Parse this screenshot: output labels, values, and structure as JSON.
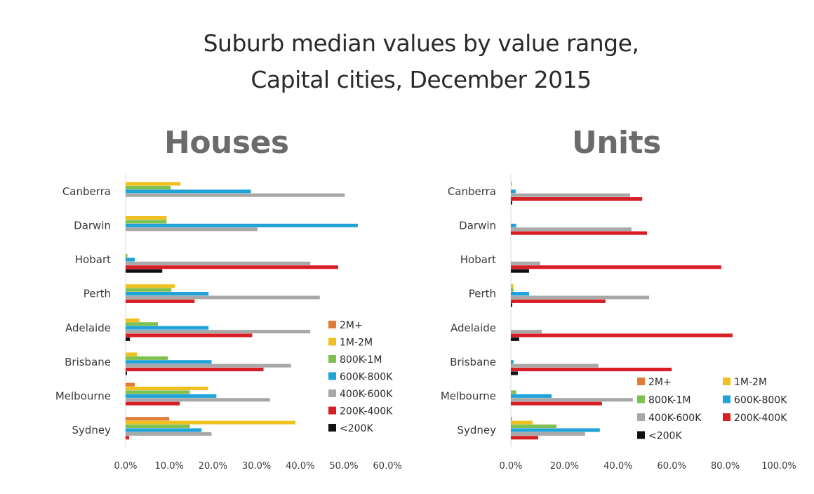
{
  "header": {
    "title_line1": "Suburb median values by value range,",
    "title_line2": "Capital cities, December 2015"
  },
  "series_colors": {
    "2M+": "#E07B39",
    "1M-2M": "#F0C020",
    "800K-1M": "#80C050",
    "600K-800K": "#1FA3D8",
    "400K-600K": "#A8A8A8",
    "200K-400K": "#D81E25",
    "<200K": "#111111"
  },
  "chart_data": [
    {
      "type": "bar",
      "orientation": "horizontal",
      "title": "Houses",
      "xlabel": "",
      "ylabel": "",
      "xlim": [
        0,
        60
      ],
      "x_ticks": [
        "0.0%",
        "10.0%",
        "20.0%",
        "30.0%",
        "40.0%",
        "50.0%",
        "60.0%"
      ],
      "grid": false,
      "legend_position": "right, single column",
      "categories": [
        "Canberra",
        "Darwin",
        "Hobart",
        "Perth",
        "Adelaide",
        "Brisbane",
        "Melbourne",
        "Sydney"
      ],
      "series": [
        {
          "name": "2M+",
          "values": [
            0,
            0,
            0,
            0,
            0,
            0,
            2.1,
            10.0
          ]
        },
        {
          "name": "1M-2M",
          "values": [
            12.6,
            9.4,
            0,
            11.3,
            3.2,
            2.6,
            18.9,
            38.9
          ]
        },
        {
          "name": "800K-1M",
          "values": [
            10.3,
            9.4,
            0.4,
            10.5,
            7.4,
            9.7,
            14.7,
            14.7
          ]
        },
        {
          "name": "600K-800K",
          "values": [
            28.7,
            53.2,
            2.1,
            19.0,
            19.0,
            19.7,
            20.8,
            17.4
          ]
        },
        {
          "name": "400K-600K",
          "values": [
            50.2,
            30.2,
            42.3,
            44.5,
            42.3,
            37.9,
            33.1,
            19.7
          ]
        },
        {
          "name": "200K-400K",
          "values": [
            0,
            0,
            48.7,
            15.8,
            29.0,
            31.6,
            12.4,
            0.8
          ]
        },
        {
          "name": "<200K",
          "values": [
            0,
            0,
            8.4,
            0,
            1.0,
            0.3,
            0,
            0
          ]
        }
      ]
    },
    {
      "type": "bar",
      "orientation": "horizontal",
      "title": "Units",
      "xlabel": "",
      "ylabel": "",
      "xlim": [
        0,
        100
      ],
      "x_ticks": [
        "0.0%",
        "20.0%",
        "40.0%",
        "60.0%",
        "80.0%",
        "100.0%"
      ],
      "grid": false,
      "legend_position": "lower right, two columns",
      "categories": [
        "Canberra",
        "Darwin",
        "Hobart",
        "Perth",
        "Adelaide",
        "Brisbane",
        "Melbourne",
        "Sydney"
      ],
      "series": [
        {
          "name": "2M+",
          "values": [
            0,
            0,
            0,
            0,
            0,
            0,
            0,
            0.3
          ]
        },
        {
          "name": "1M-2M",
          "values": [
            0.5,
            0,
            0,
            1.0,
            0,
            0,
            0,
            8.1
          ]
        },
        {
          "name": "800K-1M",
          "values": [
            0,
            0,
            0,
            1.0,
            0,
            0,
            2.0,
            17.0
          ]
        },
        {
          "name": "600K-800K",
          "values": [
            1.8,
            2.0,
            0,
            6.8,
            0,
            1.0,
            15.2,
            33.2
          ]
        },
        {
          "name": "400K-600K",
          "values": [
            44.5,
            45.0,
            11.0,
            51.6,
            11.5,
            32.7,
            45.5,
            27.7
          ]
        },
        {
          "name": "200K-400K",
          "values": [
            49.0,
            50.8,
            78.5,
            35.3,
            82.7,
            60.0,
            34.0,
            10.2
          ]
        },
        {
          "name": "<200K",
          "values": [
            0.5,
            0,
            6.8,
            0.5,
            3.1,
            2.6,
            0,
            0
          ]
        }
      ]
    }
  ]
}
